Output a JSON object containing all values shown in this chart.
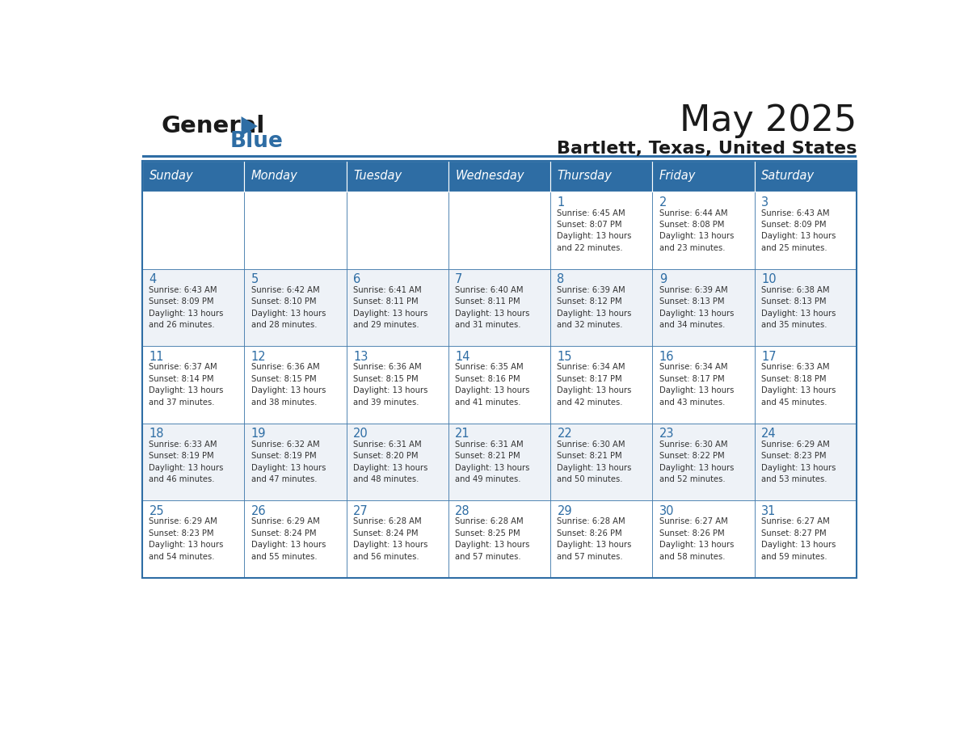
{
  "title": "May 2025",
  "subtitle": "Bartlett, Texas, United States",
  "days_of_week": [
    "Sunday",
    "Monday",
    "Tuesday",
    "Wednesday",
    "Thursday",
    "Friday",
    "Saturday"
  ],
  "header_bg": "#2E6DA4",
  "header_text": "#FFFFFF",
  "cell_bg_light": "#FFFFFF",
  "cell_bg_dark": "#EEF2F7",
  "cell_border": "#2E6DA4",
  "day_num_color": "#2E6DA4",
  "text_color": "#333333",
  "logo_general_color": "#1a1a1a",
  "logo_blue_color": "#2E6DA4",
  "weeks": [
    [
      {
        "day": null,
        "info": null
      },
      {
        "day": null,
        "info": null
      },
      {
        "day": null,
        "info": null
      },
      {
        "day": null,
        "info": null
      },
      {
        "day": 1,
        "info": "Sunrise: 6:45 AM\nSunset: 8:07 PM\nDaylight: 13 hours\nand 22 minutes."
      },
      {
        "day": 2,
        "info": "Sunrise: 6:44 AM\nSunset: 8:08 PM\nDaylight: 13 hours\nand 23 minutes."
      },
      {
        "day": 3,
        "info": "Sunrise: 6:43 AM\nSunset: 8:09 PM\nDaylight: 13 hours\nand 25 minutes."
      }
    ],
    [
      {
        "day": 4,
        "info": "Sunrise: 6:43 AM\nSunset: 8:09 PM\nDaylight: 13 hours\nand 26 minutes."
      },
      {
        "day": 5,
        "info": "Sunrise: 6:42 AM\nSunset: 8:10 PM\nDaylight: 13 hours\nand 28 minutes."
      },
      {
        "day": 6,
        "info": "Sunrise: 6:41 AM\nSunset: 8:11 PM\nDaylight: 13 hours\nand 29 minutes."
      },
      {
        "day": 7,
        "info": "Sunrise: 6:40 AM\nSunset: 8:11 PM\nDaylight: 13 hours\nand 31 minutes."
      },
      {
        "day": 8,
        "info": "Sunrise: 6:39 AM\nSunset: 8:12 PM\nDaylight: 13 hours\nand 32 minutes."
      },
      {
        "day": 9,
        "info": "Sunrise: 6:39 AM\nSunset: 8:13 PM\nDaylight: 13 hours\nand 34 minutes."
      },
      {
        "day": 10,
        "info": "Sunrise: 6:38 AM\nSunset: 8:13 PM\nDaylight: 13 hours\nand 35 minutes."
      }
    ],
    [
      {
        "day": 11,
        "info": "Sunrise: 6:37 AM\nSunset: 8:14 PM\nDaylight: 13 hours\nand 37 minutes."
      },
      {
        "day": 12,
        "info": "Sunrise: 6:36 AM\nSunset: 8:15 PM\nDaylight: 13 hours\nand 38 minutes."
      },
      {
        "day": 13,
        "info": "Sunrise: 6:36 AM\nSunset: 8:15 PM\nDaylight: 13 hours\nand 39 minutes."
      },
      {
        "day": 14,
        "info": "Sunrise: 6:35 AM\nSunset: 8:16 PM\nDaylight: 13 hours\nand 41 minutes."
      },
      {
        "day": 15,
        "info": "Sunrise: 6:34 AM\nSunset: 8:17 PM\nDaylight: 13 hours\nand 42 minutes."
      },
      {
        "day": 16,
        "info": "Sunrise: 6:34 AM\nSunset: 8:17 PM\nDaylight: 13 hours\nand 43 minutes."
      },
      {
        "day": 17,
        "info": "Sunrise: 6:33 AM\nSunset: 8:18 PM\nDaylight: 13 hours\nand 45 minutes."
      }
    ],
    [
      {
        "day": 18,
        "info": "Sunrise: 6:33 AM\nSunset: 8:19 PM\nDaylight: 13 hours\nand 46 minutes."
      },
      {
        "day": 19,
        "info": "Sunrise: 6:32 AM\nSunset: 8:19 PM\nDaylight: 13 hours\nand 47 minutes."
      },
      {
        "day": 20,
        "info": "Sunrise: 6:31 AM\nSunset: 8:20 PM\nDaylight: 13 hours\nand 48 minutes."
      },
      {
        "day": 21,
        "info": "Sunrise: 6:31 AM\nSunset: 8:21 PM\nDaylight: 13 hours\nand 49 minutes."
      },
      {
        "day": 22,
        "info": "Sunrise: 6:30 AM\nSunset: 8:21 PM\nDaylight: 13 hours\nand 50 minutes."
      },
      {
        "day": 23,
        "info": "Sunrise: 6:30 AM\nSunset: 8:22 PM\nDaylight: 13 hours\nand 52 minutes."
      },
      {
        "day": 24,
        "info": "Sunrise: 6:29 AM\nSunset: 8:23 PM\nDaylight: 13 hours\nand 53 minutes."
      }
    ],
    [
      {
        "day": 25,
        "info": "Sunrise: 6:29 AM\nSunset: 8:23 PM\nDaylight: 13 hours\nand 54 minutes."
      },
      {
        "day": 26,
        "info": "Sunrise: 6:29 AM\nSunset: 8:24 PM\nDaylight: 13 hours\nand 55 minutes."
      },
      {
        "day": 27,
        "info": "Sunrise: 6:28 AM\nSunset: 8:24 PM\nDaylight: 13 hours\nand 56 minutes."
      },
      {
        "day": 28,
        "info": "Sunrise: 6:28 AM\nSunset: 8:25 PM\nDaylight: 13 hours\nand 57 minutes."
      },
      {
        "day": 29,
        "info": "Sunrise: 6:28 AM\nSunset: 8:26 PM\nDaylight: 13 hours\nand 57 minutes."
      },
      {
        "day": 30,
        "info": "Sunrise: 6:27 AM\nSunset: 8:26 PM\nDaylight: 13 hours\nand 58 minutes."
      },
      {
        "day": 31,
        "info": "Sunrise: 6:27 AM\nSunset: 8:27 PM\nDaylight: 13 hours\nand 59 minutes."
      }
    ]
  ]
}
